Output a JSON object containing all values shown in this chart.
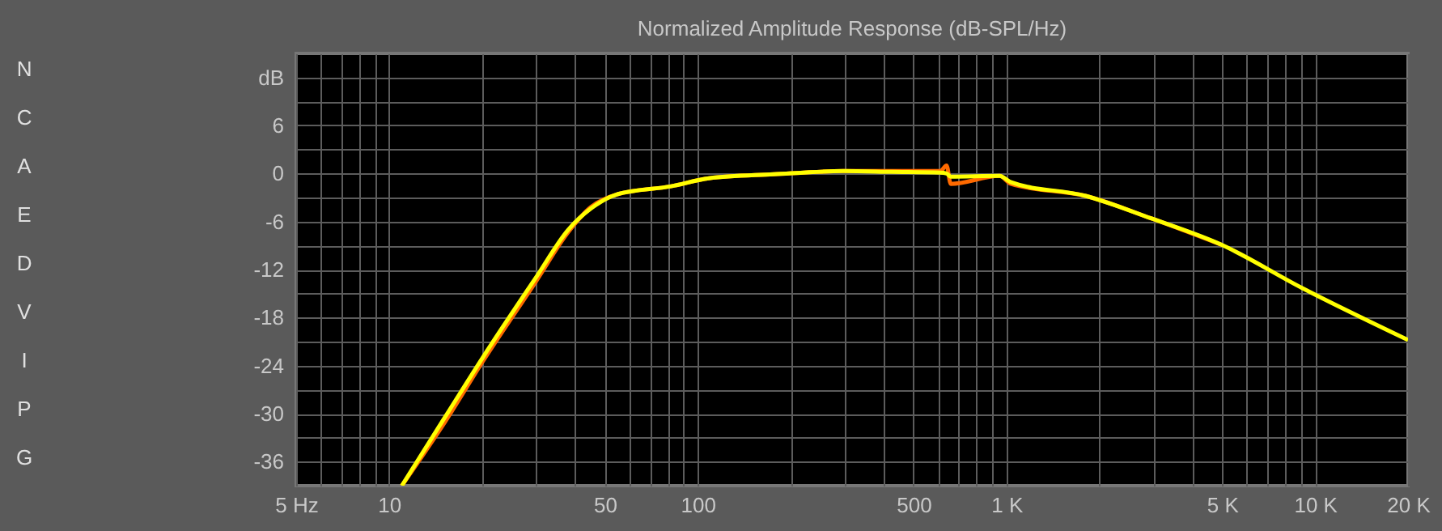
{
  "chart_data": {
    "type": "line",
    "title": "Normalized Amplitude Response (dB-SPL/Hz)",
    "x": [
      11,
      15.2,
      20.1,
      29.9,
      38.1,
      45,
      54.8,
      82,
      108.7,
      176,
      296,
      425,
      610,
      640,
      660,
      950,
      1035,
      1805,
      2940,
      4970,
      9070,
      20000
    ],
    "series": [
      {
        "color": "#ff6a00",
        "values": [
          -39,
          -31,
          -23.5,
          -13.5,
          -7.3,
          -4.2,
          -2.6,
          -1.6,
          -0.6,
          -0.1,
          0.3,
          0.3,
          0.3,
          1,
          -1.3,
          -0.3,
          -1.3,
          -2.8,
          -5.6,
          -8.9,
          null,
          null
        ]
      },
      {
        "color": "#ffff00",
        "values": [
          -39,
          -30.4,
          -23,
          -13,
          -7,
          -4.4,
          -2.6,
          -1.6,
          -0.6,
          -0.1,
          0.3,
          0.2,
          0.1,
          0,
          -0.4,
          -0.3,
          -1.1,
          -2.8,
          -5.6,
          -8.9,
          -14.3,
          -20.8
        ]
      }
    ],
    "log": "x",
    "grid": true,
    "marker": "none",
    "line_style": "solid",
    "xlim": [
      5,
      20000
    ],
    "xticks": [
      {
        "value": 5,
        "label": "5 Hz"
      },
      {
        "value": 6,
        "label": null
      },
      {
        "value": 7,
        "label": null
      },
      {
        "value": 8,
        "label": null
      },
      {
        "value": 9,
        "label": null
      },
      10,
      {
        "value": 20,
        "label": null
      },
      {
        "value": 30,
        "label": null
      },
      {
        "value": 40,
        "label": null
      },
      50,
      {
        "value": 60,
        "label": null
      },
      {
        "value": 70,
        "label": null
      },
      {
        "value": 80,
        "label": null
      },
      {
        "value": 90,
        "label": null
      },
      100,
      {
        "value": 200,
        "label": null
      },
      {
        "value": 300,
        "label": null
      },
      {
        "value": 400,
        "label": null
      },
      500,
      {
        "value": 600,
        "label": null
      },
      {
        "value": 700,
        "label": null
      },
      {
        "value": 800,
        "label": null
      },
      {
        "value": 900,
        "label": null
      },
      {
        "value": 1000,
        "label": "1 K"
      },
      {
        "value": 2000,
        "label": null
      },
      {
        "value": 3000,
        "label": null
      },
      {
        "value": 4000,
        "label": null
      },
      {
        "value": 5000,
        "label": "5 K"
      },
      {
        "value": 6000,
        "label": null
      },
      {
        "value": 7000,
        "label": null
      },
      {
        "value": 8000,
        "label": null
      },
      {
        "value": 9000,
        "label": null
      },
      {
        "value": 10000,
        "label": "10 K"
      },
      {
        "value": 20000,
        "label": "20 K"
      }
    ],
    "ylim": [
      -39,
      15
    ],
    "yticks": [
      -36,
      {
        "value": -33,
        "label": null
      },
      -30,
      {
        "value": -27,
        "label": null
      },
      -24,
      {
        "value": -21,
        "label": null
      },
      -18,
      {
        "value": -15,
        "label": null
      },
      -12,
      {
        "value": -9,
        "label": null
      },
      -6,
      {
        "value": -3,
        "label": null
      },
      0,
      {
        "value": 3,
        "label": null
      },
      6,
      {
        "value": 9,
        "label": null
      },
      {
        "value": 12,
        "label": "dB"
      }
    ],
    "annotations": [
      "N",
      "C",
      "A",
      "E",
      "D",
      "V",
      "I",
      "P",
      "G"
    ]
  }
}
